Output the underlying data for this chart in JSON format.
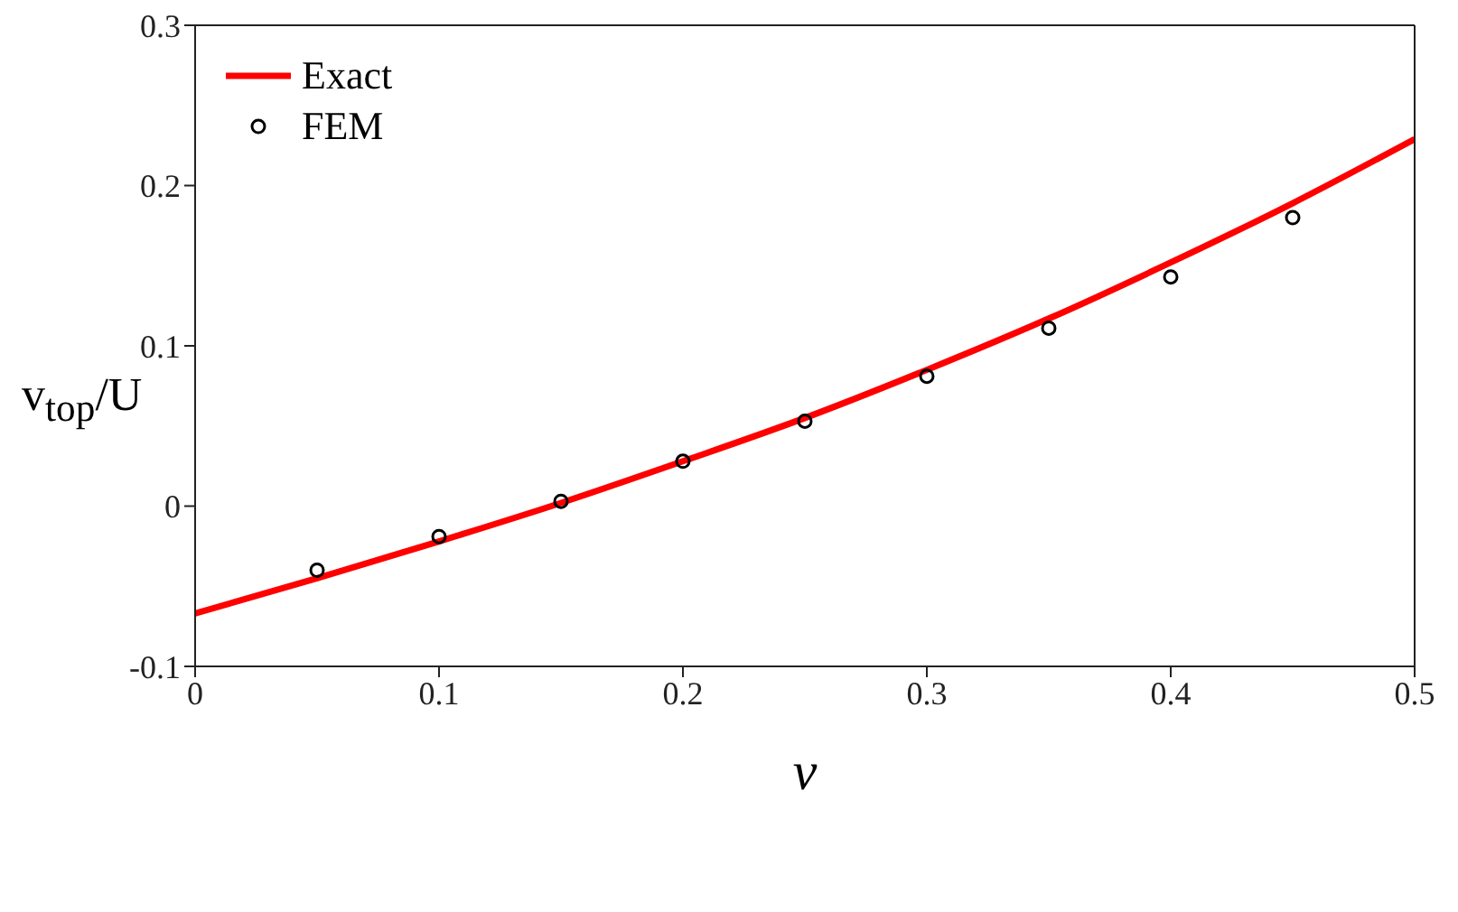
{
  "chart_data": {
    "type": "line",
    "xlabel": "ν",
    "ylabel": "v$_{top}$/U",
    "xlim": [
      0,
      0.5
    ],
    "xticks": [
      0,
      0.1,
      0.2,
      0.3,
      0.4,
      0.5
    ],
    "ylim": [
      -0.1,
      0.3
    ],
    "yticks": [
      -0.1,
      0,
      0.1,
      0.2,
      0.3
    ],
    "grid": false,
    "legend": "top left",
    "series": [
      {
        "name": "Exact",
        "color": "#ff0000",
        "marker": "none",
        "line_style": "solid",
        "x": [
          0,
          0.05,
          0.1,
          0.15,
          0.2,
          0.25,
          0.3,
          0.35,
          0.4,
          0.45,
          0.5
        ],
        "values": [
          -0.067,
          -0.045,
          -0.022,
          0.002,
          0.028,
          0.055,
          0.085,
          0.117,
          0.152,
          0.189,
          0.229
        ]
      },
      {
        "name": "FEM",
        "type": "scatter",
        "color": "#000000",
        "marker": "circle",
        "x": [
          0.05,
          0.1,
          0.15,
          0.2,
          0.25,
          0.3,
          0.35,
          0.4,
          0.45
        ],
        "values": [
          -0.04,
          -0.019,
          0.003,
          0.028,
          0.053,
          0.081,
          0.111,
          0.143,
          0.18
        ]
      }
    ]
  }
}
